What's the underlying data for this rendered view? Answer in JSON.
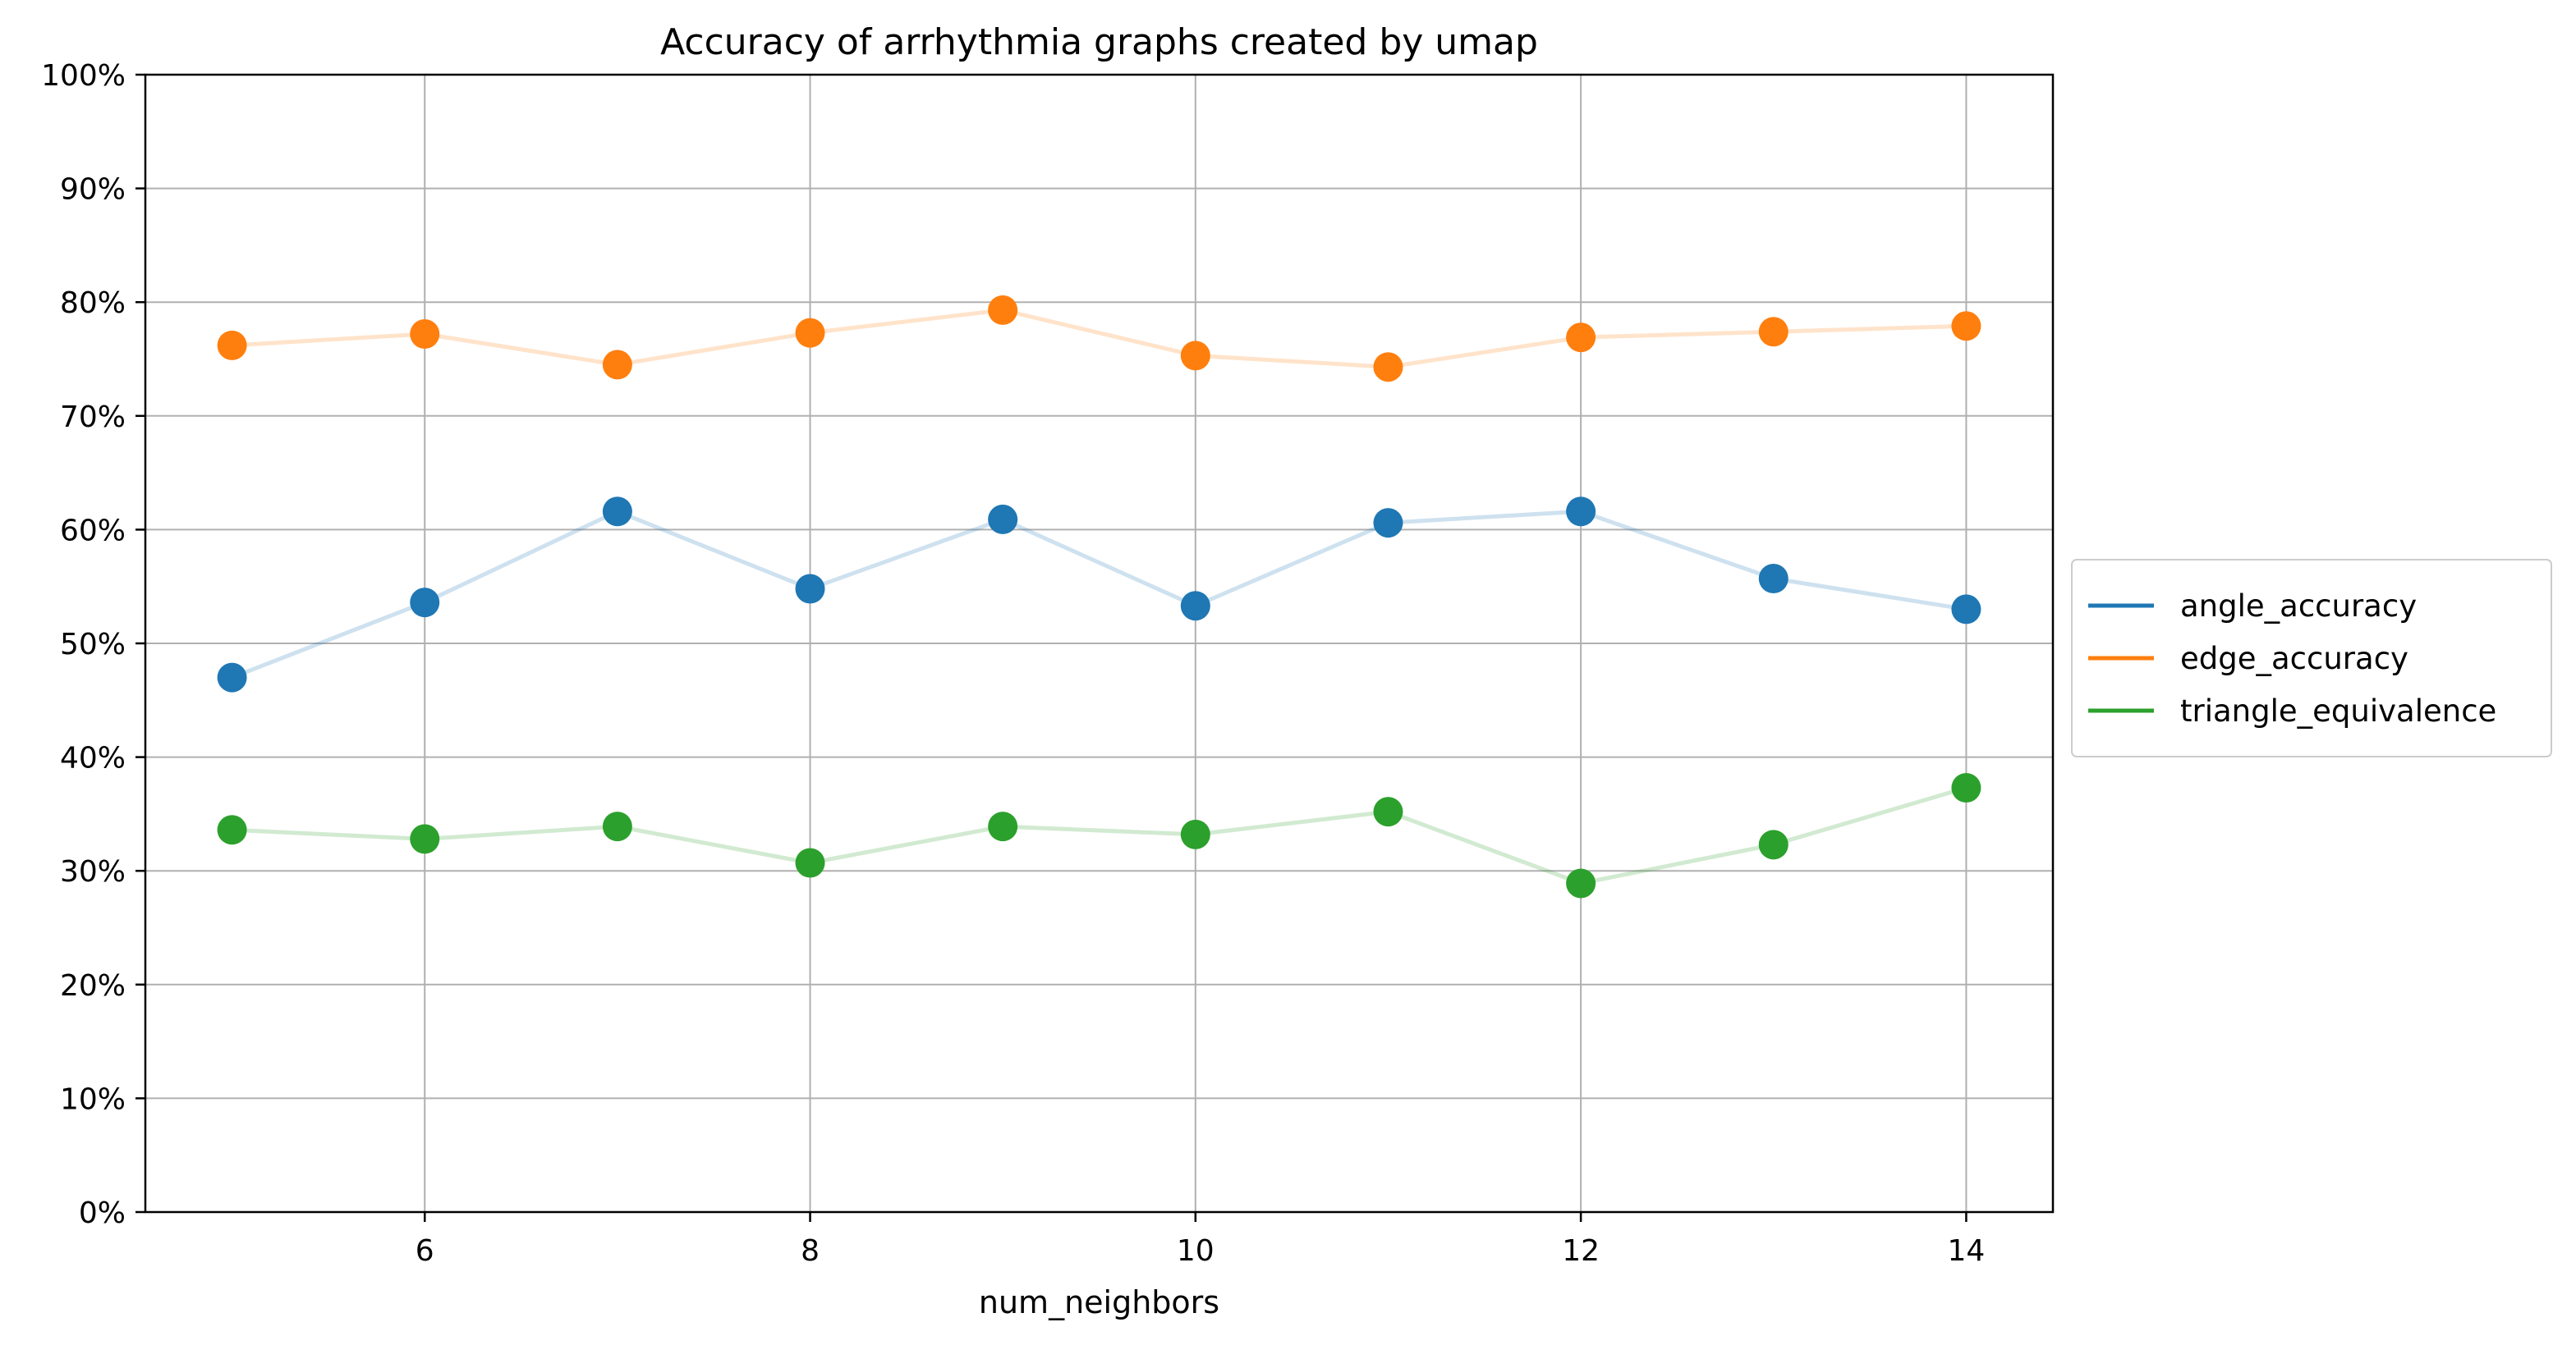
{
  "chart_data": {
    "type": "line",
    "title": "Accuracy of arrhythmia graphs created by umap",
    "xlabel": "num_neighbors",
    "ylabel": "",
    "x": [
      5,
      6,
      7,
      8,
      9,
      10,
      11,
      12,
      13,
      14
    ],
    "xlim": [
      4.55,
      14.45
    ],
    "ylim": [
      0,
      1
    ],
    "x_ticks": [
      6,
      8,
      10,
      12,
      14
    ],
    "y_ticks": [
      0,
      0.1,
      0.2,
      0.3,
      0.4,
      0.5,
      0.6,
      0.7,
      0.8,
      0.9,
      1.0
    ],
    "x_tick_labels": [
      "6",
      "8",
      "10",
      "12",
      "14"
    ],
    "y_tick_labels": [
      "0%",
      "10%",
      "20%",
      "30%",
      "40%",
      "50%",
      "60%",
      "70%",
      "80%",
      "90%",
      "100%"
    ],
    "grid": true,
    "legend_position": "outside-right",
    "series": [
      {
        "name": "angle_accuracy",
        "color": "#1f77b4",
        "values": [
          0.47,
          0.536,
          0.616,
          0.548,
          0.609,
          0.533,
          0.606,
          0.616,
          0.557,
          0.53
        ]
      },
      {
        "name": "edge_accuracy",
        "color": "#ff7f0e",
        "values": [
          0.762,
          0.772,
          0.745,
          0.773,
          0.793,
          0.753,
          0.743,
          0.769,
          0.774,
          0.779
        ]
      },
      {
        "name": "triangle_equivalence",
        "color": "#2ca02c",
        "values": [
          0.336,
          0.328,
          0.339,
          0.307,
          0.339,
          0.332,
          0.352,
          0.289,
          0.323,
          0.373
        ]
      }
    ]
  }
}
